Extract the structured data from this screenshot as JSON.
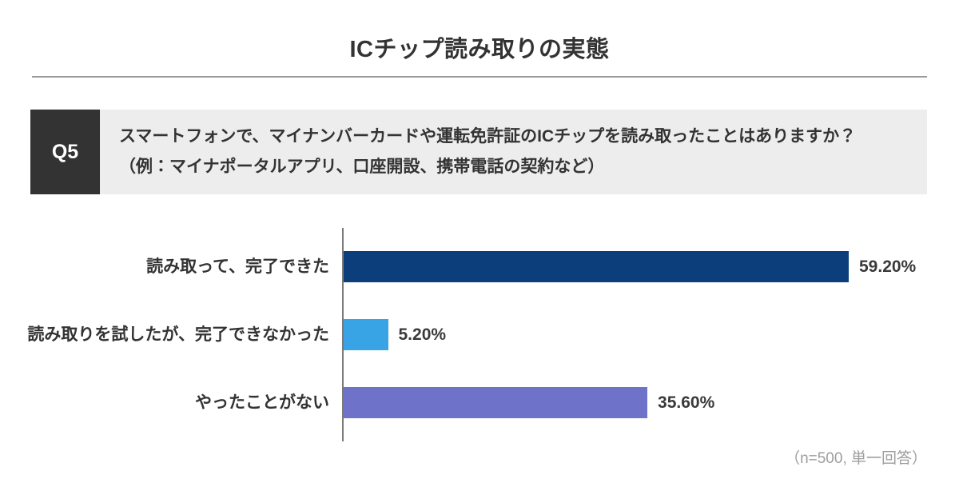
{
  "header": {
    "title": "ICチップ読み取りの実態"
  },
  "question": {
    "badge": "Q5",
    "line1": "スマートフォンで、マイナンバーカードや運転免許証のICチップを読み取ったことはありますか？",
    "line2": "（例：マイナポータルアプリ、口座開設、携帯電話の契約など）"
  },
  "chart_data": {
    "type": "bar",
    "orientation": "horizontal",
    "title": "ICチップ読み取りの実態",
    "categories": [
      "読み取って、完了できた",
      "読み取りを試したが、完了できなかった",
      "やったことがない"
    ],
    "values": [
      59.2,
      5.2,
      35.6
    ],
    "display_values": [
      "59.20%",
      "5.20%",
      "35.60%"
    ],
    "colors": [
      "#0b3e7b",
      "#38a3e5",
      "#6f72c9"
    ],
    "xlabel": "",
    "ylabel": "",
    "xlim": [
      0,
      68
    ],
    "grid": false,
    "legend": "none",
    "value_labels": "outside-end",
    "axis_color": "#7a7a7a"
  },
  "footer": {
    "note": "（n=500, 単一回答）"
  }
}
